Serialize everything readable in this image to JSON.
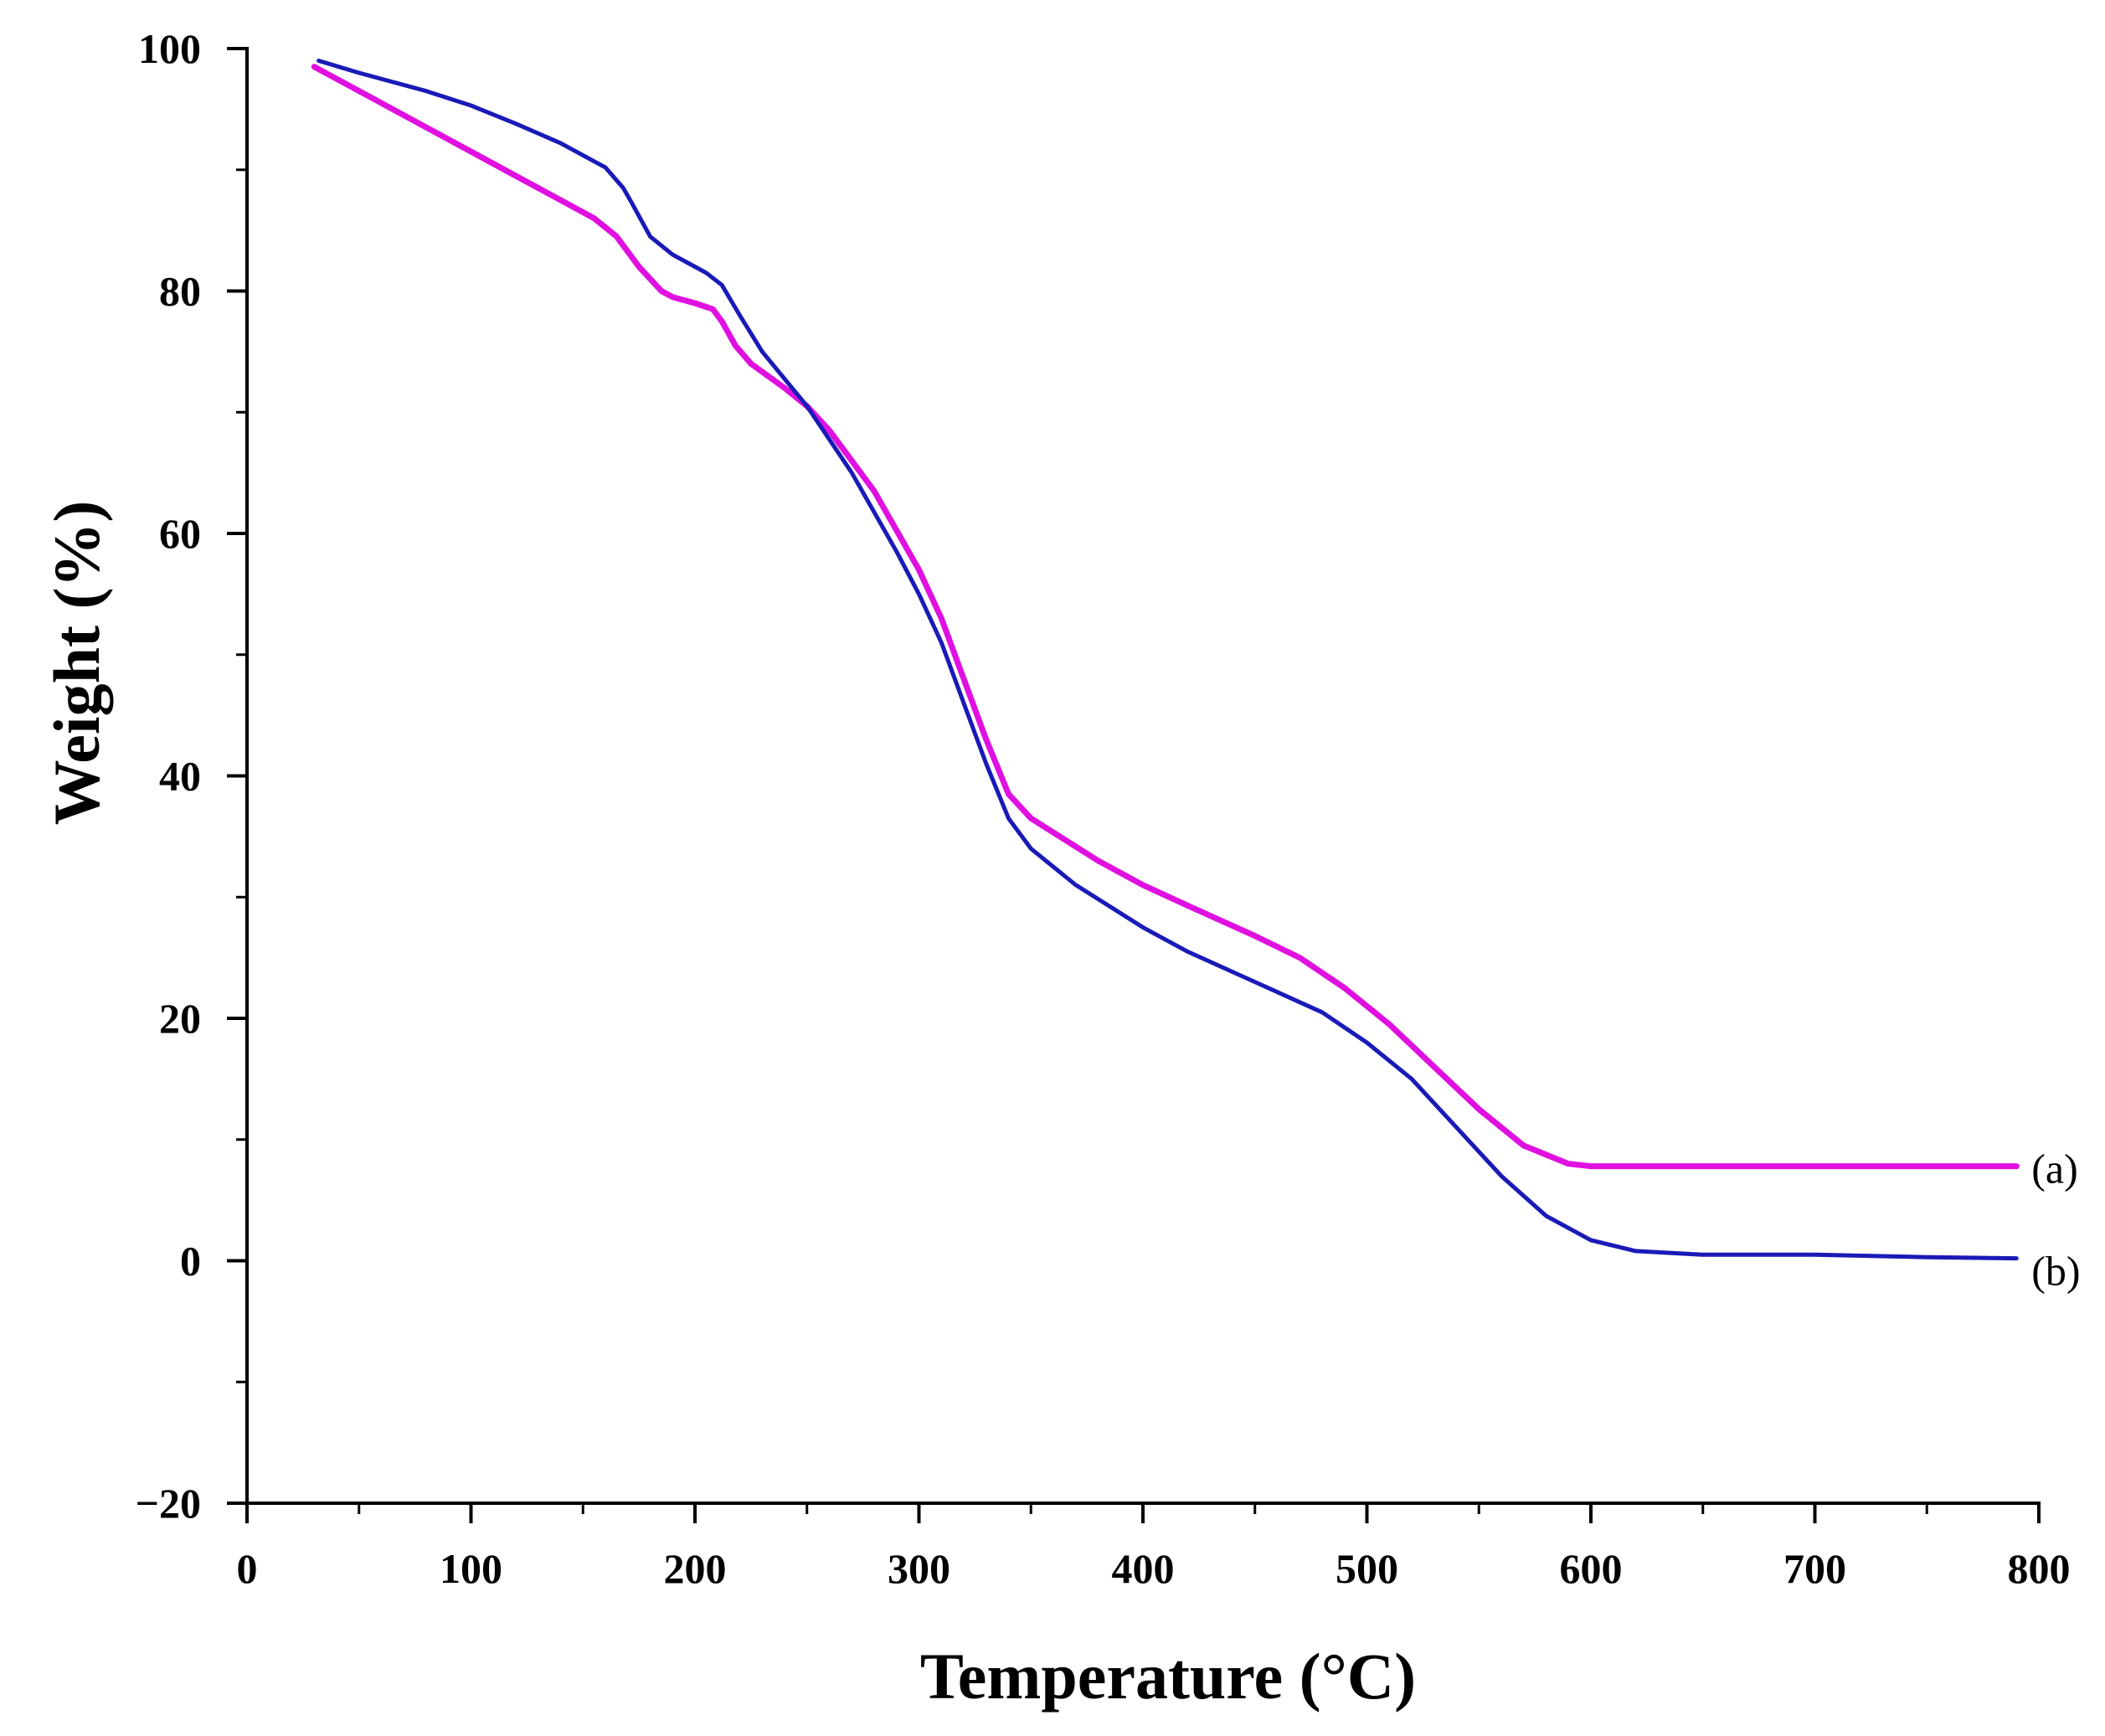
{
  "chart_data": {
    "type": "line",
    "title": "",
    "xlabel": "Temperature (°C)",
    "ylabel": "Weight (%)",
    "xlim": [
      0,
      800
    ],
    "ylim": [
      -20,
      100
    ],
    "x_ticks": [
      0,
      100,
      200,
      300,
      400,
      500,
      600,
      700,
      800
    ],
    "y_ticks": [
      -20,
      0,
      20,
      40,
      60,
      80,
      100
    ],
    "x_tick_labels": [
      "0",
      "100",
      "200",
      "300",
      "400",
      "500",
      "600",
      "700",
      "800"
    ],
    "y_tick_labels": [
      "−20",
      "0",
      "20",
      "40",
      "60",
      "80",
      "100"
    ],
    "grid": false,
    "legend": "inline labels at right end of each curve",
    "series": [
      {
        "name": "(a)",
        "color": "#e010e0",
        "x": [
          30,
          40,
          60,
          80,
          100,
          120,
          140,
          155,
          165,
          175,
          185,
          190,
          200,
          208,
          212,
          218,
          225,
          240,
          250,
          260,
          280,
          300,
          310,
          320,
          330,
          340,
          350,
          380,
          400,
          420,
          450,
          470,
          490,
          510,
          530,
          550,
          570,
          590,
          600,
          650,
          700,
          750,
          790
        ],
        "y": [
          98.5,
          97.5,
          95.5,
          93.5,
          91.5,
          89.5,
          87.5,
          86,
          84.5,
          82,
          80,
          79.5,
          79,
          78.5,
          77.5,
          75.5,
          74,
          72,
          70.5,
          68.5,
          63.5,
          57,
          53,
          48,
          43,
          38.5,
          36.5,
          33,
          31,
          29.3,
          26.8,
          25,
          22.5,
          19.5,
          16,
          12.5,
          9.5,
          8,
          7.8,
          7.8,
          7.8,
          7.8,
          7.8
        ]
      },
      {
        "name": "(b)",
        "color": "#1a1ab8",
        "x": [
          32,
          50,
          80,
          100,
          120,
          140,
          160,
          168,
          172,
          180,
          190,
          200,
          205,
          212,
          220,
          230,
          250,
          270,
          290,
          300,
          310,
          320,
          330,
          340,
          350,
          370,
          400,
          420,
          450,
          480,
          500,
          520,
          540,
          560,
          580,
          600,
          620,
          650,
          700,
          750,
          790
        ],
        "y": [
          99,
          98,
          96.5,
          95.3,
          93.8,
          92.2,
          90.2,
          88.5,
          87.2,
          84.5,
          83,
          82,
          81.5,
          80.5,
          78,
          75,
          70.5,
          65,
          58.5,
          55,
          51,
          46,
          41,
          36.5,
          34,
          31,
          27.5,
          25.5,
          23,
          20.5,
          18,
          15,
          11,
          7,
          3.7,
          1.7,
          0.8,
          0.5,
          0.5,
          0.3,
          0.2
        ]
      }
    ]
  }
}
